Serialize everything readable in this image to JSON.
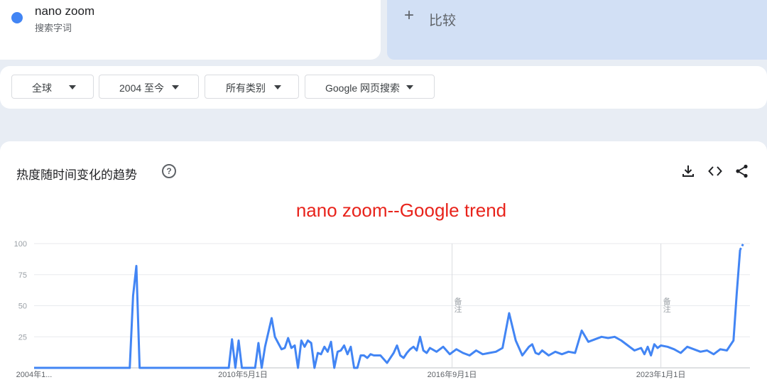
{
  "search_term": {
    "name": "nano zoom",
    "subtitle": "搜索字词",
    "color": "#4285f4"
  },
  "compare": {
    "plus": "+",
    "label": "比较"
  },
  "filters": [
    {
      "label": "全球"
    },
    {
      "label": "2004 至今"
    },
    {
      "label": "所有类别"
    },
    {
      "label": "Google 网页搜索"
    }
  ],
  "chart_card": {
    "heading": "热度随时间变化的趋势",
    "help_glyph": "?",
    "tools": [
      "download-icon",
      "embed-code-icon",
      "share-icon"
    ]
  },
  "chart_data": {
    "type": "line",
    "title": "nano zoom--Google trend",
    "ylim": [
      0,
      100
    ],
    "yticks": [
      100,
      75,
      50,
      25
    ],
    "xlim": [
      2004.0,
      2025.7
    ],
    "xtick_labels": [
      "2004年1...",
      "2010年5月1日",
      "2016年9月1日",
      "2023年1月1日"
    ],
    "xtick_values": [
      2004.0,
      2010.33,
      2016.67,
      2023.0
    ],
    "note_markers": [
      {
        "x": 2016.67,
        "label": "备注"
      },
      {
        "x": 2023.0,
        "label": "备注"
      }
    ],
    "line_color": "#4285f4",
    "series": [
      {
        "x": [
          2004.0,
          2006.9,
          2007.0,
          2007.1,
          2007.2,
          2007.3,
          2009.9,
          2010.0,
          2010.1,
          2010.2,
          2010.3,
          2010.4,
          2010.5,
          2010.7,
          2010.8,
          2010.9,
          2011.0,
          2011.2,
          2011.3,
          2011.4,
          2011.5,
          2011.6,
          2011.7,
          2011.8,
          2011.9,
          2012.0,
          2012.1,
          2012.2,
          2012.3,
          2012.4,
          2012.5,
          2012.6,
          2012.7,
          2012.8,
          2012.9,
          2013.0,
          2013.1,
          2013.2,
          2013.3,
          2013.4,
          2013.5,
          2013.6,
          2013.7,
          2013.8,
          2013.9,
          2014.0,
          2014.1,
          2014.2,
          2014.3,
          2014.5,
          2014.7,
          2014.9,
          2015.0,
          2015.1,
          2015.2,
          2015.3,
          2015.4,
          2015.5,
          2015.6,
          2015.7,
          2015.8,
          2015.9,
          2016.0,
          2016.2,
          2016.4,
          2016.6,
          2016.8,
          2017.0,
          2017.2,
          2017.4,
          2017.6,
          2017.8,
          2018.0,
          2018.2,
          2018.4,
          2018.6,
          2018.8,
          2019.0,
          2019.1,
          2019.2,
          2019.3,
          2019.4,
          2019.6,
          2019.8,
          2020.0,
          2020.2,
          2020.4,
          2020.6,
          2020.8,
          2021.0,
          2021.2,
          2021.4,
          2021.6,
          2021.8,
          2022.0,
          2022.2,
          2022.4,
          2022.5,
          2022.6,
          2022.7,
          2022.8,
          2022.9,
          2023.0,
          2023.2,
          2023.4,
          2023.6,
          2023.8,
          2024.0,
          2024.2,
          2024.4,
          2024.6,
          2024.8,
          2025.0,
          2025.1,
          2025.2,
          2025.3,
          2025.4,
          2025.5
        ],
        "y": [
          0,
          0,
          58,
          82,
          0,
          0,
          0,
          23,
          0,
          22,
          0,
          0,
          0,
          0,
          20,
          0,
          17,
          40,
          25,
          20,
          15,
          16,
          24,
          16,
          18,
          0,
          22,
          17,
          22,
          20,
          0,
          12,
          11,
          17,
          13,
          21,
          0,
          13,
          14,
          18,
          11,
          17,
          0,
          0,
          10,
          10,
          8,
          11,
          10,
          10,
          4,
          12,
          18,
          10,
          8,
          12,
          15,
          17,
          14,
          25,
          14,
          12,
          16,
          13,
          17,
          11,
          15,
          12,
          10,
          14,
          11,
          12,
          13,
          16,
          44,
          22,
          10,
          17,
          19,
          12,
          11,
          14,
          10,
          13,
          11,
          13,
          12,
          30,
          21,
          23,
          25,
          24,
          25,
          22,
          18,
          14,
          16,
          11,
          17,
          10,
          19,
          16,
          18,
          17,
          15,
          12,
          17,
          15,
          13,
          14,
          11,
          15,
          14,
          18,
          22,
          60,
          95,
          100
        ]
      }
    ]
  }
}
